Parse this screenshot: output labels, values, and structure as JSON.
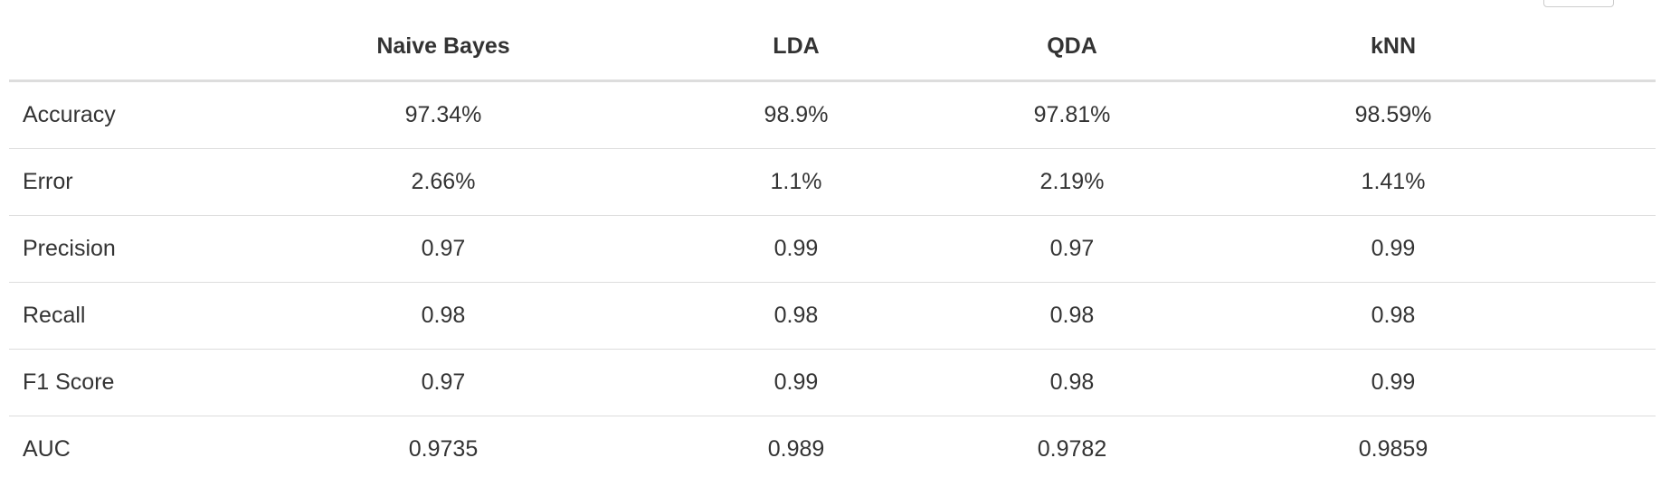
{
  "table": {
    "columns": [
      "",
      "Naive Bayes",
      "LDA",
      "QDA",
      "kNN"
    ],
    "rows": [
      {
        "label": "Accuracy",
        "values": [
          "97.34%",
          "98.9%",
          "97.81%",
          "98.59%"
        ]
      },
      {
        "label": "Error",
        "values": [
          "2.66%",
          "1.1%",
          "2.19%",
          "1.41%"
        ]
      },
      {
        "label": "Precision",
        "values": [
          "0.97",
          "0.99",
          "0.97",
          "0.99"
        ]
      },
      {
        "label": "Recall",
        "values": [
          "0.98",
          "0.98",
          "0.98",
          "0.98"
        ]
      },
      {
        "label": "F1 Score",
        "values": [
          "0.97",
          "0.99",
          "0.98",
          "0.99"
        ]
      },
      {
        "label": "AUC",
        "values": [
          "0.9735",
          "0.989",
          "0.9782",
          "0.9859"
        ]
      }
    ]
  }
}
